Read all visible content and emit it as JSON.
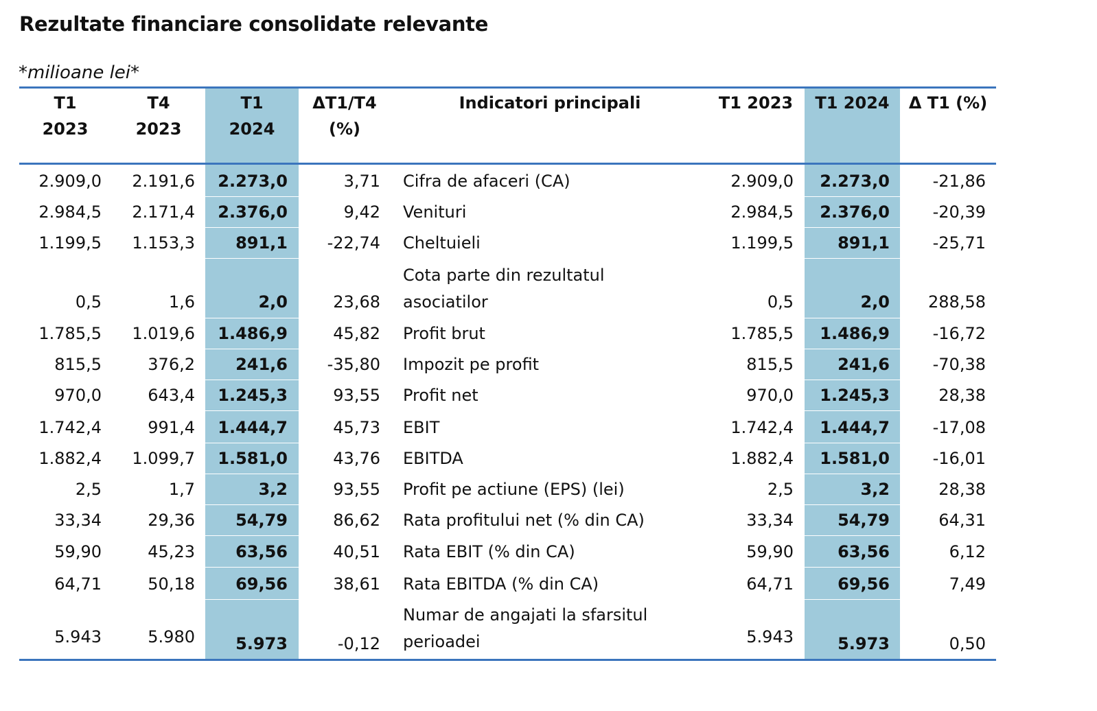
{
  "title": "Rezultate financiare consolidate relevante",
  "unit": "*milioane lei*",
  "headers": {
    "col1": [
      "T1",
      "2023"
    ],
    "col2": [
      "T4",
      "2023"
    ],
    "col3": [
      "T1",
      "2024"
    ],
    "col4": [
      "ΔT1/T4",
      "(%)"
    ],
    "indicator": "Indicatori principali",
    "col6": "T1 2023",
    "col7": "T1 2024",
    "col8": "Δ T1 (%)"
  },
  "rows": [
    {
      "c1": "2.909,0",
      "c2": "2.191,6",
      "c3": "2.273,0",
      "c4": "3,71",
      "name": [
        "Cifra de afaceri (CA)"
      ],
      "c6": "2.909,0",
      "c7": "2.273,0",
      "c8": "-21,86"
    },
    {
      "c1": "2.984,5",
      "c2": "2.171,4",
      "c3": "2.376,0",
      "c4": "9,42",
      "name": [
        "Venituri"
      ],
      "c6": "2.984,5",
      "c7": "2.376,0",
      "c8": "-20,39"
    },
    {
      "c1": "1.199,5",
      "c2": "1.153,3",
      "c3": "891,1",
      "c4": "-22,74",
      "name": [
        "Cheltuieli"
      ],
      "c6": "1.199,5",
      "c7": "891,1",
      "c8": "-25,71"
    },
    {
      "c1": "0,5",
      "c2": "1,6",
      "c3": "2,0",
      "c4": "23,68",
      "name": [
        "Cota parte din rezultatul",
        "asociatilor"
      ],
      "c6": "0,5",
      "c7": "2,0",
      "c8": "288,58"
    },
    {
      "c1": "1.785,5",
      "c2": "1.019,6",
      "c3": "1.486,9",
      "c4": "45,82",
      "name": [
        "Profit brut"
      ],
      "c6": "1.785,5",
      "c7": "1.486,9",
      "c8": "-16,72"
    },
    {
      "c1": "815,5",
      "c2": "376,2",
      "c3": "241,6",
      "c4": "-35,80",
      "name": [
        "Impozit pe profit"
      ],
      "c6": "815,5",
      "c7": "241,6",
      "c8": "-70,38"
    },
    {
      "c1": "970,0",
      "c2": "643,4",
      "c3": "1.245,3",
      "c4": "93,55",
      "name": [
        "Profit net"
      ],
      "c6": "970,0",
      "c7": "1.245,3",
      "c8": "28,38"
    },
    {
      "c1": "1.742,4",
      "c2": "991,4",
      "c3": "1.444,7",
      "c4": "45,73",
      "name": [
        "EBIT"
      ],
      "c6": "1.742,4",
      "c7": "1.444,7",
      "c8": "-17,08"
    },
    {
      "c1": "1.882,4",
      "c2": "1.099,7",
      "c3": "1.581,0",
      "c4": "43,76",
      "name": [
        "EBITDA"
      ],
      "c6": "1.882,4",
      "c7": "1.581,0",
      "c8": "-16,01"
    },
    {
      "c1": "2,5",
      "c2": "1,7",
      "c3": "3,2",
      "c4": "93,55",
      "name": [
        "Profit pe actiune (EPS) (lei)"
      ],
      "c6": "2,5",
      "c7": "3,2",
      "c8": "28,38"
    },
    {
      "c1": "33,34",
      "c2": "29,36",
      "c3": "54,79",
      "c4": "86,62",
      "name": [
        "Rata profitului net (% din CA)"
      ],
      "c6": "33,34",
      "c7": "54,79",
      "c8": "64,31"
    },
    {
      "c1": "59,90",
      "c2": "45,23",
      "c3": "63,56",
      "c4": "40,51",
      "name": [
        "Rata EBIT (% din CA)"
      ],
      "c6": "59,90",
      "c7": "63,56",
      "c8": "6,12"
    },
    {
      "c1": "64,71",
      "c2": "50,18",
      "c3": "69,56",
      "c4": "38,61",
      "name": [
        "Rata EBITDA (% din CA)"
      ],
      "c6": "64,71",
      "c7": "69,56",
      "c8": "7,49"
    },
    {
      "c1": "5.943",
      "c2": "5.980",
      "c3": "5.973",
      "c4": "-0,12",
      "name": [
        "Numar de angajati la sfarsitul",
        "perioadei"
      ],
      "c6": "5.943",
      "c7": "5.973",
      "c8": "0,50"
    }
  ],
  "colors": {
    "highlight": "#9fcadb",
    "rule": "#3b75bd"
  }
}
